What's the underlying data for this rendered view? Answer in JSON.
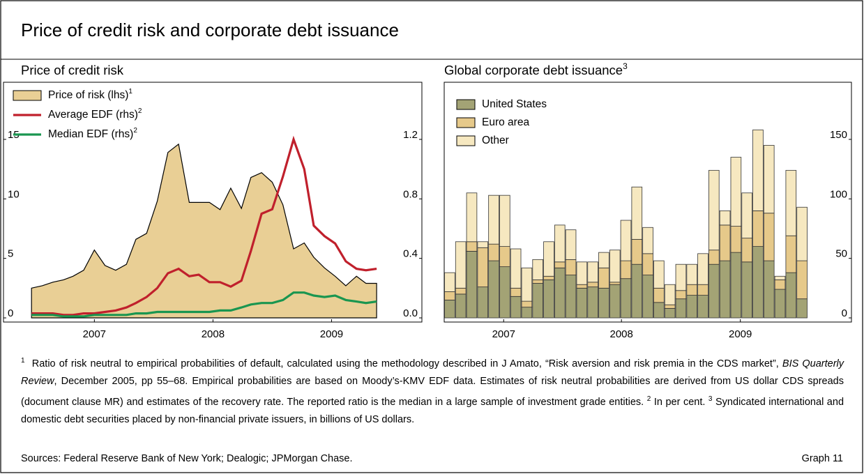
{
  "header": {
    "title": "Price of credit risk and corporate debt issuance"
  },
  "chart_data": [
    {
      "type": "line",
      "title": "Price of credit risk",
      "x": [
        2006.97,
        2007.06,
        2007.15,
        2007.24,
        2007.32,
        2007.41,
        2007.5,
        2007.59,
        2007.68,
        2007.77,
        2007.85,
        2007.94,
        2008.03,
        2008.12,
        2008.21,
        2008.3,
        2008.38,
        2008.47,
        2008.56,
        2008.65,
        2008.74,
        2008.82,
        2008.91,
        2009.0,
        2009.09,
        2009.18,
        2009.27,
        2009.35,
        2009.44,
        2009.53,
        2009.62,
        2009.71,
        2009.79,
        2009.88
      ],
      "xlim": [
        2006.91,
        2010.25
      ],
      "xticks": [
        {
          "value": 2007.5,
          "label": "2007"
        },
        {
          "value": 2008.5,
          "label": "2008"
        },
        {
          "value": 2009.5,
          "label": "2009"
        }
      ],
      "ylim": [
        -0.35,
        19.8
      ],
      "yticks": [
        0,
        5,
        10,
        15
      ],
      "y2lim": [
        -0.028,
        1.584
      ],
      "y2ticks": [
        {
          "value": 0,
          "label": "0.0"
        },
        {
          "value": 0.4,
          "label": "0.4"
        },
        {
          "value": 0.8,
          "label": "0.8"
        },
        {
          "value": 1.2,
          "label": "1.2"
        }
      ],
      "legend": "upper left",
      "series": [
        {
          "name": "Price of risk (lhs)",
          "footnote": "1",
          "style": "area",
          "color": "#e9cf95",
          "values": [
            2.5,
            2.7,
            3.0,
            3.2,
            3.5,
            4.0,
            5.7,
            4.4,
            4.0,
            4.5,
            6.6,
            7.1,
            9.8,
            13.9,
            14.6,
            9.7,
            9.7,
            9.7,
            9.1,
            10.9,
            9.2,
            11.8,
            12.2,
            11.4,
            9.5,
            5.8,
            6.3,
            5.1,
            4.2,
            3.5,
            2.7,
            3.5,
            2.9,
            2.9
          ]
        },
        {
          "name": "Average EDF (rhs)",
          "footnote": "2",
          "style": "line",
          "axis": "y2",
          "color": "#c0202c",
          "values": [
            0.03,
            0.03,
            0.03,
            0.02,
            0.02,
            0.03,
            0.03,
            0.04,
            0.05,
            0.07,
            0.1,
            0.14,
            0.2,
            0.3,
            0.33,
            0.28,
            0.29,
            0.24,
            0.24,
            0.21,
            0.25,
            0.45,
            0.7,
            0.73,
            0.95,
            1.2,
            1.0,
            0.62,
            0.55,
            0.5,
            0.38,
            0.33,
            0.32,
            0.33
          ]
        },
        {
          "name": "Median EDF (rhs)",
          "footnote": "2",
          "style": "line",
          "axis": "y2",
          "color": "#1a9650",
          "values": [
            0.02,
            0.02,
            0.02,
            0.01,
            0.01,
            0.01,
            0.02,
            0.02,
            0.02,
            0.02,
            0.03,
            0.03,
            0.04,
            0.04,
            0.04,
            0.04,
            0.04,
            0.04,
            0.05,
            0.05,
            0.07,
            0.09,
            0.1,
            0.1,
            0.12,
            0.17,
            0.17,
            0.15,
            0.14,
            0.15,
            0.12,
            0.11,
            0.1,
            0.11
          ]
        }
      ]
    },
    {
      "type": "bar",
      "stacked": true,
      "title": "Global corporate debt issuance",
      "title_footnote": "3",
      "categories": [
        null,
        null,
        null,
        null,
        null,
        null,
        null,
        null,
        null,
        null,
        null,
        null,
        null,
        null,
        null,
        null,
        null,
        null,
        null,
        null,
        null,
        null,
        null,
        null,
        null,
        null,
        null,
        null,
        null,
        null,
        null,
        null,
        null
      ],
      "xticks": [
        {
          "value": 5.4,
          "label": "2007"
        },
        {
          "value": 16.1,
          "label": "2008"
        },
        {
          "value": 26.9,
          "label": "2009"
        }
      ],
      "ylim": [
        -3.5,
        198
      ],
      "yticks": [
        0,
        50,
        100,
        150
      ],
      "yaxis_side": "right",
      "legend": "upper left",
      "series": [
        {
          "name": "United States",
          "color": "#a3a375",
          "values": [
            15,
            20,
            56,
            26,
            48,
            43,
            18,
            9,
            29,
            32,
            42,
            36,
            25,
            26,
            25,
            28,
            33,
            45,
            36,
            13,
            8,
            16,
            19,
            19,
            45,
            48,
            55,
            47,
            60,
            48,
            24,
            38,
            16
          ]
        },
        {
          "name": "Euro area",
          "color": "#e6c98a",
          "values": [
            7,
            5,
            8,
            33,
            14,
            17,
            7,
            5,
            3,
            3,
            5,
            13,
            3,
            4,
            17,
            2,
            15,
            21,
            18,
            12,
            3,
            7,
            9,
            9,
            12,
            30,
            22,
            20,
            30,
            40,
            8,
            31,
            32
          ]
        },
        {
          "name": "Other",
          "color": "#f6e8c0",
          "values": [
            16,
            39,
            41,
            5,
            41,
            43,
            33,
            28,
            17,
            29,
            31,
            25,
            19,
            17,
            13,
            27,
            34,
            44,
            22,
            23,
            17,
            22,
            17,
            26,
            67,
            12,
            58,
            38,
            68,
            57,
            3,
            55,
            45
          ]
        }
      ]
    }
  ],
  "notes": [
    {
      "marker": "1",
      "text_before": "Ratio of risk neutral to empirical probabilities of default, calculated using the methodology described in J Amato, “Risk aversion and risk premia in the CDS market”, ",
      "italic": "BIS Quarterly Review",
      "text_after": ", December 2005, pp 55–68. Empirical probabilities are based on Moody’s-KMV EDF data. Estimates of risk neutral probabilities are derived from US dollar CDS spreads (document clause MR) and estimates of the recovery rate. The reported ratio is the median in a large sample of investment grade entities."
    },
    {
      "marker": "2",
      "text": "In per cent."
    },
    {
      "marker": "3",
      "text": "Syndicated international and domestic debt securities placed by non-financial private issuers, in billions of US dollars."
    }
  ],
  "sources": "Sources: Federal Reserve Bank of New York; Dealogic; JPMorgan Chase.",
  "graph_label": "Graph 11"
}
